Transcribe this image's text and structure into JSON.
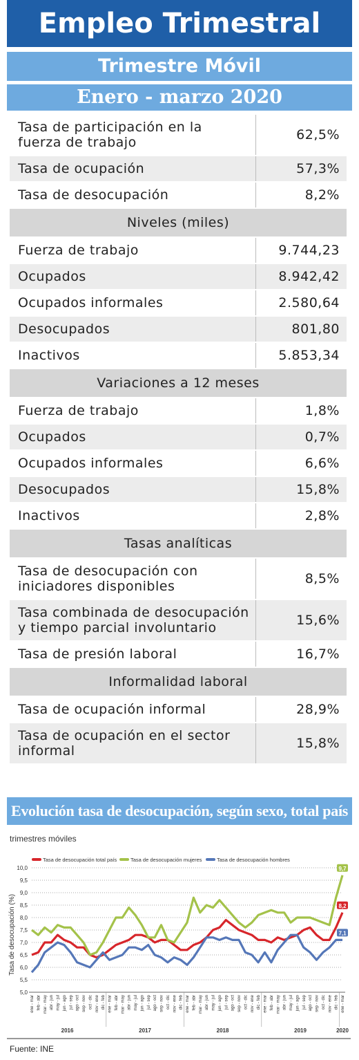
{
  "header": {
    "title": "Empleo Trimestral",
    "subtitle": "Trimestre Móvil",
    "period": "Enero - marzo 2020"
  },
  "table": [
    {
      "label": "Tasa de participación en la fuerza de trabajo",
      "value": "62,5%"
    },
    {
      "label": "Tasa de ocupación",
      "value": "57,3%"
    },
    {
      "label": "Tasa de desocupación",
      "value": "8,2%"
    },
    {
      "section": "Niveles (miles)"
    },
    {
      "label": "Fuerza de trabajo",
      "value": "9.744,23"
    },
    {
      "label": "Ocupados",
      "value": "8.942,42"
    },
    {
      "label": "Ocupados informales",
      "value": "2.580,64"
    },
    {
      "label": "Desocupados",
      "value": "801,80"
    },
    {
      "label": "Inactivos",
      "value": "5.853,34"
    },
    {
      "section": "Variaciones a 12 meses"
    },
    {
      "label": "Fuerza de trabajo",
      "value": "1,8%"
    },
    {
      "label": "Ocupados",
      "value": "0,7%"
    },
    {
      "label": "Ocupados informales",
      "value": "6,6%"
    },
    {
      "label": "Desocupados",
      "value": "15,8%"
    },
    {
      "label": "Inactivos",
      "value": "2,8%"
    },
    {
      "section": "Tasas analíticas"
    },
    {
      "label": "Tasa de desocupación con iniciadores disponibles",
      "value": "8,5%"
    },
    {
      "label": "Tasa combinada de desocupación y tiempo parcial involuntario",
      "value": "15,6%"
    },
    {
      "label": "Tasa de presión laboral",
      "value": "16,7%"
    },
    {
      "section": "Informalidad laboral"
    },
    {
      "label": "Tasa de ocupación informal",
      "value": "28,9%"
    },
    {
      "label": "Tasa de ocupación en el sector informal",
      "value": "15,8%"
    }
  ],
  "chart_data": {
    "type": "line",
    "title": "Evolución tasa de desocupación, según sexo, total país",
    "subtitle": "trimestres móviles",
    "y_label": "Tasa de desocupación (%)",
    "categories": [
      "ene - mar",
      "feb - abr",
      "mar - may",
      "abr - jun",
      "may - jul",
      "jun - ago",
      "jul - sep",
      "ago - oct",
      "sep - nov",
      "oct - dic",
      "nov - ene",
      "dic - feb",
      "ene - mar",
      "feb - abr",
      "mar - may",
      "abr - jun",
      "may - jul",
      "jun - ago",
      "jul - sep",
      "ago - oct",
      "sep - nov",
      "oct - dic",
      "nov - ene",
      "dic - feb",
      "ene - mar",
      "feb - abr",
      "mar - may",
      "abr - jun",
      "may - jul",
      "jun - ago",
      "jul - sep",
      "ago - oct",
      "sep - nov",
      "oct - dic",
      "nov - ene",
      "dic - feb",
      "ene - mar",
      "feb - abr",
      "mar - may",
      "abr - jun",
      "may - jul",
      "jun - ago",
      "jul - sep",
      "ago - oct",
      "sep - nov",
      "oct - dic",
      "nov - ene",
      "dic - feb",
      "ene - mar"
    ],
    "years": [
      "2016",
      "2017",
      "2018",
      "2019",
      "2020"
    ],
    "series": [
      {
        "name": "Tasa de desocupación total país",
        "color": "#d7262b",
        "values": [
          6.5,
          6.6,
          7.0,
          7.0,
          7.3,
          7.1,
          7.0,
          6.8,
          6.8,
          6.5,
          6.4,
          6.5,
          6.7,
          6.9,
          7.0,
          7.1,
          7.3,
          7.3,
          7.2,
          7.0,
          7.1,
          7.1,
          6.9,
          6.7,
          6.7,
          6.9,
          7.0,
          7.2,
          7.5,
          7.6,
          7.9,
          7.7,
          7.5,
          7.4,
          7.3,
          7.1,
          7.1,
          7.0,
          7.2,
          7.1,
          7.2,
          7.3,
          7.5,
          7.6,
          7.3,
          7.1,
          7.1,
          7.6,
          8.2
        ],
        "value_labels": [
          null,
          null,
          null,
          null,
          null,
          null,
          null,
          null,
          null,
          null,
          null,
          null,
          null,
          null,
          null,
          null,
          null,
          null,
          null,
          null,
          null,
          null,
          null,
          null,
          null,
          null,
          null,
          null,
          null,
          null,
          null,
          null,
          null,
          null,
          null,
          null,
          null,
          null,
          null,
          null,
          null,
          null,
          null,
          null,
          null,
          null,
          null,
          null,
          "8,2"
        ]
      },
      {
        "name": "Tasa de desocupación mujeres",
        "color": "#a4c24a",
        "values": [
          7.5,
          7.3,
          7.6,
          7.4,
          7.7,
          7.6,
          7.6,
          7.3,
          7.0,
          6.5,
          6.6,
          7.0,
          7.5,
          8.0,
          8.0,
          8.4,
          8.1,
          7.7,
          7.2,
          7.2,
          7.7,
          7.1,
          7.0,
          7.4,
          7.8,
          8.8,
          8.2,
          8.5,
          8.4,
          8.7,
          8.4,
          8.1,
          7.8,
          7.6,
          7.8,
          8.1,
          8.2,
          8.3,
          8.2,
          8.2,
          7.8,
          8.0,
          8.0,
          8.0,
          7.9,
          7.8,
          7.7,
          8.8,
          9.7
        ],
        "value_labels": [
          null,
          null,
          null,
          null,
          null,
          null,
          null,
          null,
          null,
          null,
          null,
          null,
          null,
          null,
          null,
          null,
          null,
          null,
          null,
          null,
          null,
          null,
          null,
          null,
          null,
          null,
          null,
          null,
          null,
          null,
          null,
          null,
          null,
          null,
          null,
          null,
          null,
          null,
          null,
          null,
          null,
          null,
          null,
          null,
          null,
          null,
          null,
          null,
          "9,7"
        ]
      },
      {
        "name": "Tasa de desocupación hombres",
        "color": "#5577b8",
        "values": [
          5.8,
          6.1,
          6.6,
          6.8,
          7.0,
          6.9,
          6.6,
          6.2,
          6.1,
          6.0,
          6.3,
          6.6,
          6.3,
          6.4,
          6.5,
          6.8,
          6.8,
          6.7,
          6.9,
          6.5,
          6.4,
          6.2,
          6.4,
          6.3,
          6.1,
          6.4,
          6.8,
          7.2,
          7.2,
          7.1,
          7.2,
          7.1,
          7.1,
          6.6,
          6.5,
          6.2,
          6.6,
          6.2,
          6.7,
          7.0,
          7.3,
          7.3,
          6.8,
          6.6,
          6.3,
          6.6,
          6.8,
          7.1,
          7.1
        ],
        "value_labels": [
          null,
          null,
          null,
          null,
          null,
          null,
          null,
          null,
          null,
          null,
          null,
          null,
          null,
          null,
          null,
          null,
          null,
          null,
          null,
          null,
          null,
          null,
          null,
          null,
          null,
          null,
          null,
          null,
          null,
          null,
          null,
          null,
          null,
          null,
          null,
          null,
          null,
          null,
          null,
          null,
          null,
          null,
          null,
          null,
          null,
          null,
          null,
          null,
          "7,1"
        ]
      }
    ],
    "ylim": [
      5,
      10
    ],
    "yticks": [
      {
        "value": 5,
        "label": "5,0"
      },
      {
        "value": 5.5,
        "label": "5,5"
      },
      {
        "value": 6,
        "label": "6,0"
      },
      {
        "value": 6.5,
        "label": "6,5"
      },
      {
        "value": 7,
        "label": "7,0"
      },
      {
        "value": 7.5,
        "label": "7,5"
      },
      {
        "value": 8,
        "label": "8,0"
      },
      {
        "value": 8.5,
        "label": "8,5"
      },
      {
        "value": 9,
        "label": "9,0"
      },
      {
        "value": 9.5,
        "label": "9,5"
      },
      {
        "value": 10,
        "label": "10,0"
      }
    ],
    "grid": true,
    "legend": "top"
  },
  "source": "Fuente: INE"
}
